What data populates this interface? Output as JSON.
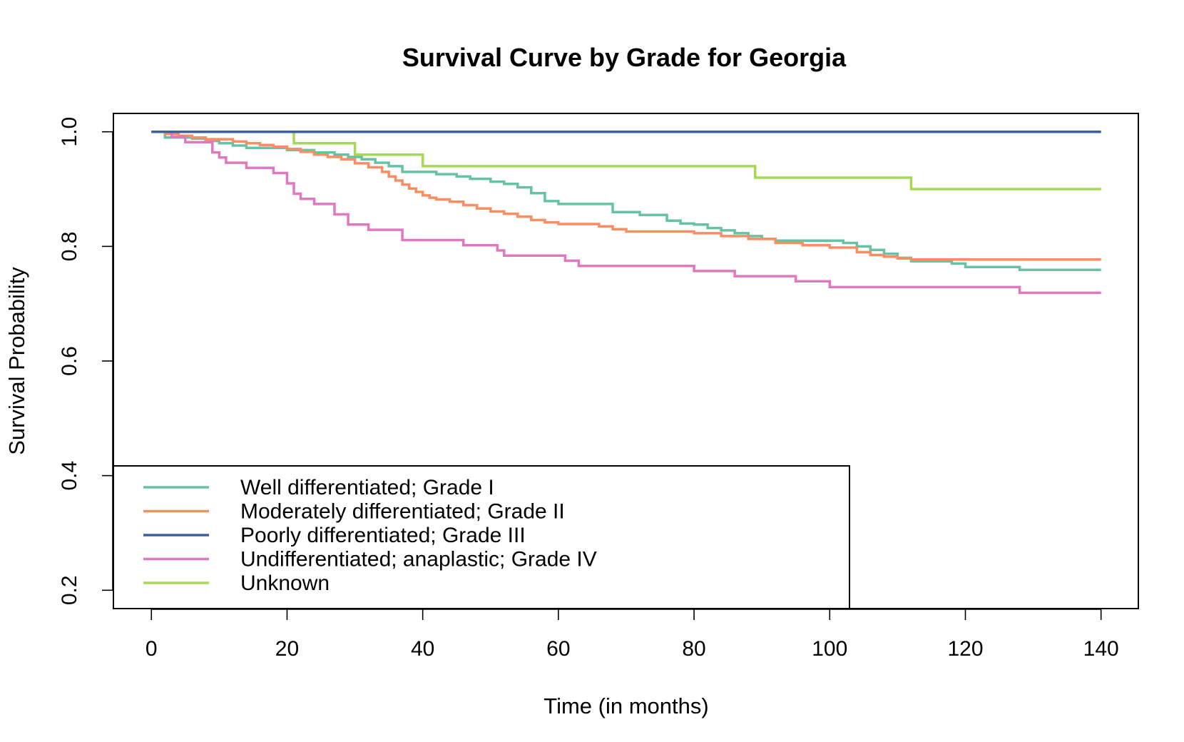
{
  "chart_data": {
    "type": "line",
    "step": true,
    "title": "Survival Curve by Grade for Georgia",
    "xlabel": "Time (in months)",
    "ylabel": "Survival Probability",
    "xlim": [
      -5.6,
      145.5
    ],
    "ylim": [
      0.168,
      1.032
    ],
    "x_ticks": [
      0,
      20,
      40,
      60,
      80,
      100,
      120,
      140
    ],
    "y_ticks": [
      0.2,
      0.4,
      0.6,
      0.8,
      1.0
    ],
    "x_tick_labels": [
      "0",
      "20",
      "40",
      "60",
      "80",
      "100",
      "120",
      "140"
    ],
    "y_tick_labels": [
      "0.2",
      "0.4",
      "0.6",
      "0.8",
      "1.0"
    ],
    "grid": false,
    "legend_position": "bottom-left",
    "series": [
      {
        "name": "Well differentiated; Grade I",
        "color": "#66c2a5",
        "x": [
          0,
          2,
          4,
          6,
          8,
          10,
          12,
          14,
          20,
          24,
          27,
          29,
          31,
          33,
          35,
          37,
          42,
          45,
          47,
          50,
          52,
          54,
          56,
          58,
          60,
          68,
          72,
          76,
          78,
          80,
          82,
          84,
          86,
          88,
          90,
          92,
          100,
          102,
          104,
          106,
          108,
          110,
          112,
          116,
          118,
          120,
          124,
          128,
          140
        ],
        "y": [
          1.0,
          0.99,
          0.99,
          0.988,
          0.984,
          0.98,
          0.976,
          0.972,
          0.968,
          0.964,
          0.96,
          0.956,
          0.952,
          0.946,
          0.94,
          0.93,
          0.926,
          0.922,
          0.918,
          0.913,
          0.909,
          0.903,
          0.893,
          0.879,
          0.874,
          0.86,
          0.855,
          0.845,
          0.84,
          0.838,
          0.832,
          0.828,
          0.823,
          0.818,
          0.813,
          0.81,
          0.81,
          0.806,
          0.8,
          0.794,
          0.787,
          0.78,
          0.774,
          0.774,
          0.77,
          0.764,
          0.764,
          0.759,
          0.759
        ]
      },
      {
        "name": "Moderately differentiated; Grade II",
        "color": "#fc8d62",
        "x": [
          0,
          2,
          4,
          6,
          8,
          12,
          14,
          16,
          18,
          20,
          22,
          24,
          26,
          28,
          30,
          32,
          34,
          35,
          36,
          37,
          38,
          39,
          40,
          41,
          42,
          44,
          46,
          48,
          50,
          52,
          54,
          56,
          58,
          60,
          66,
          68,
          70,
          80,
          84,
          88,
          92,
          96,
          100,
          104,
          106,
          108,
          110,
          112,
          140
        ],
        "y": [
          1.0,
          0.996,
          0.993,
          0.99,
          0.987,
          0.983,
          0.98,
          0.977,
          0.974,
          0.97,
          0.965,
          0.96,
          0.956,
          0.952,
          0.945,
          0.938,
          0.93,
          0.922,
          0.915,
          0.908,
          0.901,
          0.895,
          0.889,
          0.885,
          0.882,
          0.878,
          0.872,
          0.866,
          0.861,
          0.857,
          0.852,
          0.846,
          0.842,
          0.839,
          0.835,
          0.83,
          0.826,
          0.823,
          0.818,
          0.813,
          0.806,
          0.802,
          0.798,
          0.79,
          0.785,
          0.782,
          0.779,
          0.777,
          0.777
        ]
      },
      {
        "name": "Poorly differentiated; Grade III",
        "color": "#3b5fa0",
        "x": [
          0,
          140
        ],
        "y": [
          1.0,
          1.0
        ]
      },
      {
        "name": "Undifferentiated; anaplastic; Grade IV",
        "color": "#e078c0",
        "x": [
          0,
          3,
          5,
          9,
          10,
          11,
          14,
          18,
          20,
          21,
          22,
          24,
          27,
          29,
          32,
          37,
          46,
          51,
          52,
          61,
          63,
          80,
          86,
          95,
          100,
          128,
          140
        ],
        "y": [
          1.0,
          0.991,
          0.982,
          0.964,
          0.955,
          0.946,
          0.937,
          0.928,
          0.91,
          0.892,
          0.883,
          0.874,
          0.856,
          0.838,
          0.829,
          0.811,
          0.802,
          0.793,
          0.784,
          0.775,
          0.766,
          0.757,
          0.748,
          0.739,
          0.729,
          0.719,
          0.719
        ]
      },
      {
        "name": "Unknown",
        "color": "#a6d854",
        "x": [
          0,
          21,
          30,
          40,
          89,
          112,
          140
        ],
        "y": [
          1.0,
          0.98,
          0.96,
          0.94,
          0.92,
          0.9,
          0.9
        ]
      }
    ]
  }
}
